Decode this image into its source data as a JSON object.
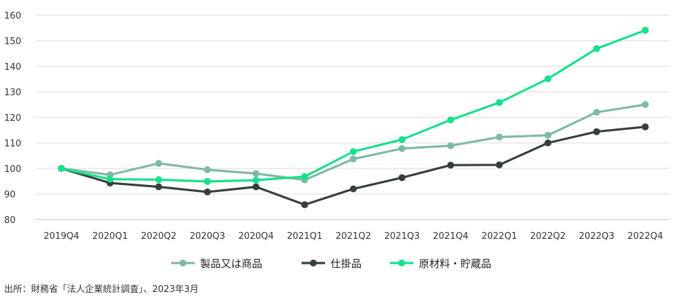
{
  "chart_data": {
    "type": "line",
    "categories": [
      "2019Q4",
      "2020Q1",
      "2020Q2",
      "2020Q3",
      "2020Q4",
      "2021Q1",
      "2021Q2",
      "2021Q3",
      "2021Q4",
      "2022Q1",
      "2022Q2",
      "2022Q3",
      "2022Q4"
    ],
    "ylim": [
      80,
      160
    ],
    "yticks": [
      80,
      90,
      100,
      110,
      120,
      130,
      140,
      150,
      160
    ],
    "grid": true,
    "legend_position": "bottom",
    "series": [
      {
        "name": "製品又は商品",
        "color": "#7fb9a6",
        "values": [
          100,
          97.5,
          102,
          99.5,
          98,
          95.5,
          103.7,
          107.8,
          108.9,
          112.3,
          113,
          122,
          125
        ]
      },
      {
        "name": "仕掛品",
        "color": "#363f3d",
        "values": [
          100,
          94.3,
          92.8,
          90.8,
          92.8,
          85.8,
          92,
          96.4,
          101.3,
          101.4,
          110,
          114.4,
          116.3
        ]
      },
      {
        "name": "原材料・貯蔵品",
        "color": "#17e08a",
        "values": [
          100,
          95.8,
          95.6,
          94.9,
          95.4,
          96.8,
          106.6,
          111.3,
          119,
          125.8,
          135.1,
          146.9,
          154.1
        ]
      }
    ]
  },
  "source_text": "出所：財務省「法人企業統計調査」、2023年3月"
}
